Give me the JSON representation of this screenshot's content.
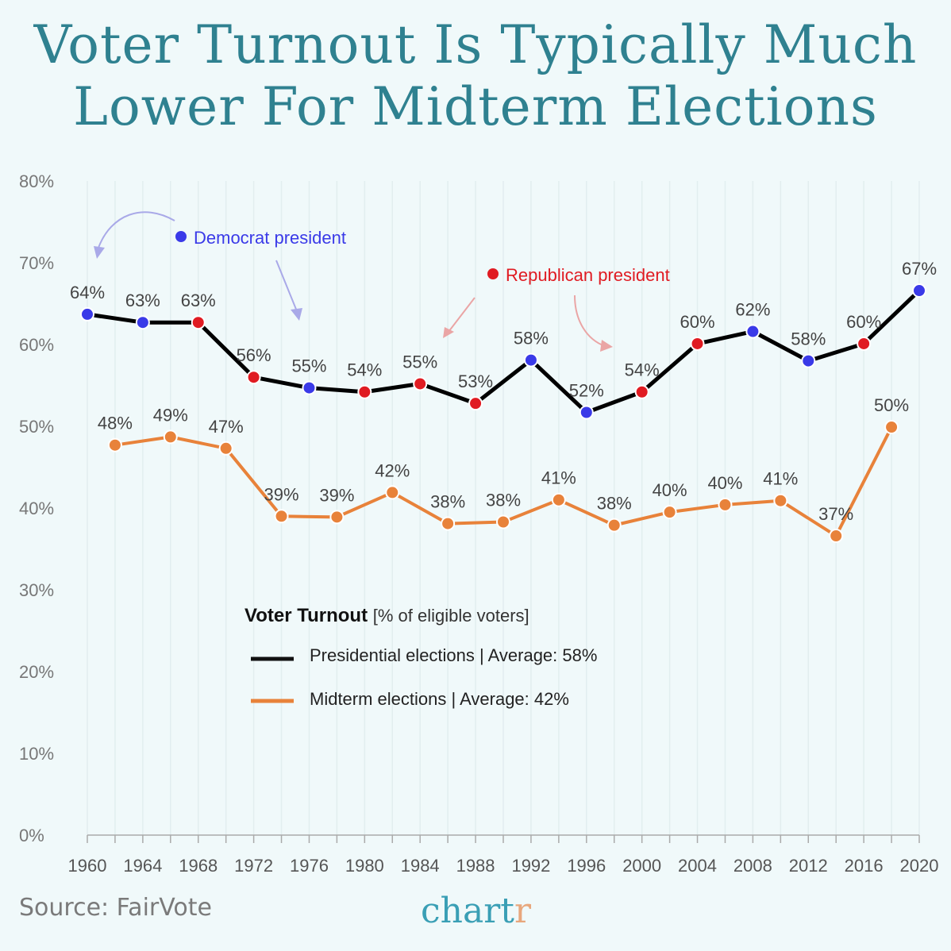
{
  "title_line1": "Voter Turnout Is Typically Much",
  "title_line2": "Lower For Midterm Elections",
  "source": "Source: FairVote",
  "logo": {
    "main": "chart",
    "accent": "r"
  },
  "chart_data": {
    "type": "line",
    "title": "Voter Turnout Is Typically Much Lower For Midterm Elections",
    "ylim": [
      0,
      80
    ],
    "xlim": [
      1960,
      2020
    ],
    "y_ticks": [
      "0%",
      "10%",
      "20%",
      "30%",
      "40%",
      "50%",
      "60%",
      "70%",
      "80%"
    ],
    "x_ticks": [
      "1960",
      "1964",
      "1968",
      "1972",
      "1976",
      "1980",
      "1984",
      "1988",
      "1992",
      "1996",
      "2000",
      "2004",
      "2008",
      "2012",
      "2016",
      "2020"
    ],
    "grid": "vertical",
    "legend": {
      "title": "Voter Turnout",
      "subtitle": "[% of eligible voters]",
      "placement": "center-left",
      "items": [
        "Presidential elections | Average: 58%",
        "Midterm elections | Average: 42%"
      ]
    },
    "annotations": {
      "democrat": "Democrat president",
      "republican": "Republican president"
    },
    "colors": {
      "presidential": "#000000",
      "midterm": "#e8823a",
      "democrat": "#3a3ae8",
      "republican": "#e01b22"
    },
    "series": [
      {
        "name": "Presidential elections",
        "x": [
          1960,
          1964,
          1968,
          1972,
          1976,
          1980,
          1984,
          1988,
          1992,
          1996,
          2000,
          2004,
          2008,
          2012,
          2016,
          2020
        ],
        "values": [
          63.7,
          62.7,
          62.7,
          56.0,
          54.7,
          54.2,
          55.2,
          52.8,
          58.1,
          51.7,
          54.2,
          60.1,
          61.6,
          58.0,
          60.1,
          66.6
        ],
        "labels": [
          "64%",
          "63%",
          "63%",
          "56%",
          "55%",
          "54%",
          "55%",
          "53%",
          "58%",
          "52%",
          "54%",
          "60%",
          "62%",
          "58%",
          "60%",
          "67%"
        ],
        "party": [
          "D",
          "D",
          "R",
          "R",
          "D",
          "R",
          "R",
          "R",
          "D",
          "D",
          "R",
          "R",
          "D",
          "D",
          "R",
          "D"
        ]
      },
      {
        "name": "Midterm elections",
        "x": [
          1962,
          1966,
          1970,
          1974,
          1978,
          1982,
          1986,
          1990,
          1994,
          1998,
          2002,
          2006,
          2010,
          2014,
          2018
        ],
        "values": [
          47.7,
          48.7,
          47.3,
          39.0,
          38.9,
          41.9,
          38.1,
          38.3,
          41.0,
          37.9,
          39.5,
          40.4,
          40.9,
          36.6,
          49.9
        ],
        "labels": [
          "48%",
          "49%",
          "47%",
          "39%",
          "39%",
          "42%",
          "38%",
          "38%",
          "41%",
          "38%",
          "40%",
          "40%",
          "41%",
          "37%",
          "50%"
        ]
      }
    ]
  }
}
